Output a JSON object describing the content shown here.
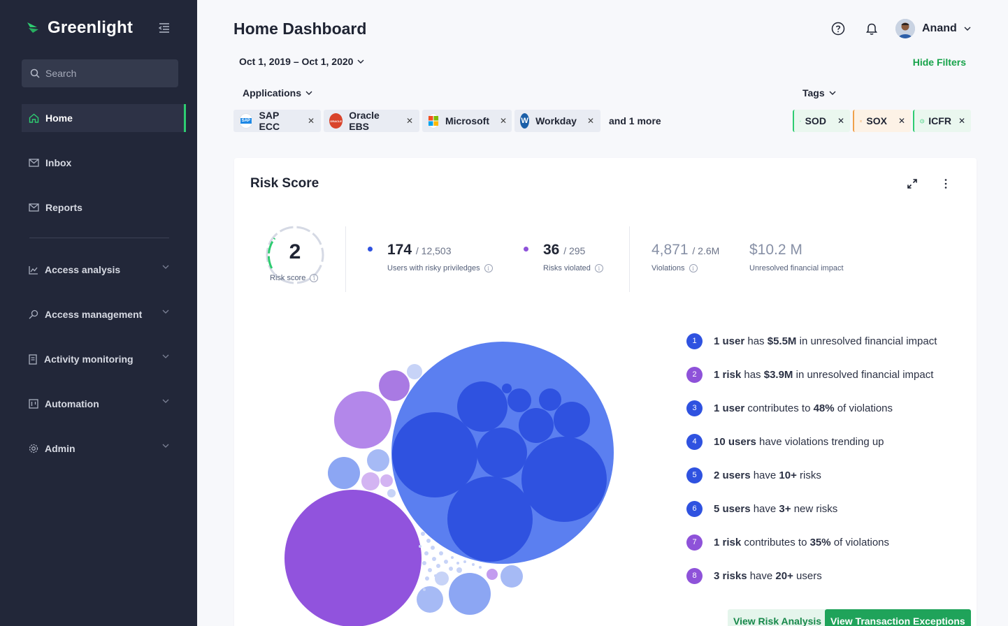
{
  "sidebar": {
    "brand": "Greenlight",
    "search_placeholder": "Search",
    "items": [
      {
        "label": "Home"
      },
      {
        "label": "Inbox"
      },
      {
        "label": "Reports"
      },
      {
        "label": "Access analysis"
      },
      {
        "label": "Access management"
      },
      {
        "label": "Activity monitoring"
      },
      {
        "label": "Automation"
      },
      {
        "label": "Admin"
      }
    ]
  },
  "header": {
    "title": "Home Dashboard",
    "user_name": "Anand",
    "date_range": "Oct 1, 2019 – Oct 1, 2020",
    "hide_filters": "Hide Filters"
  },
  "filters": {
    "applications_label": "Applications",
    "tags_label": "Tags",
    "applications": [
      {
        "name": "SAP ECC",
        "logo": "SAP",
        "color": "#1e88e5"
      },
      {
        "name": "Oracle EBS",
        "logo": "ORACLE",
        "color": "#d9442b"
      },
      {
        "name": "Microsoft",
        "logo": "",
        "color": "#ffffff"
      },
      {
        "name": "Workday",
        "logo": "W",
        "color": "#1b5fa8"
      }
    ],
    "more": "and 1 more",
    "tags": [
      {
        "name": "SOD",
        "color": "#2ecc71"
      },
      {
        "name": "SOX",
        "color": "#f0a04b"
      },
      {
        "name": "ICFR",
        "color": "#2ecc71"
      }
    ]
  },
  "risk_card": {
    "title": "Risk Score",
    "score": "2",
    "score_label": "Risk score",
    "stats": [
      {
        "value": "174",
        "total": "/ 12,503",
        "label": "Users with risky priviledges",
        "dot": "#2f52e0"
      },
      {
        "value": "36",
        "total": "/ 295",
        "label": "Risks violated",
        "dot": "#8e52d9"
      },
      {
        "value": "4,871",
        "total": "/ 2.6M",
        "label": "Violations"
      },
      {
        "value": "$10.2 M",
        "total": "",
        "label": "Unresolved financial impact"
      }
    ],
    "insights": [
      {
        "n": "1",
        "color": "#2f52e0",
        "pre": "",
        "b1": "1 user",
        "mid": " has ",
        "b2": "$5.5M",
        "post": " in unresolved financial impact"
      },
      {
        "n": "2",
        "color": "#8e52d9",
        "pre": "",
        "b1": "1 risk",
        "mid": " has ",
        "b2": "$3.9M",
        "post": " in unresolved financial impact"
      },
      {
        "n": "3",
        "color": "#2f52e0",
        "pre": "",
        "b1": "1 user",
        "mid": " contributes to ",
        "b2": "48%",
        "post": " of violations"
      },
      {
        "n": "4",
        "color": "#2f52e0",
        "pre": "",
        "b1": "10 users",
        "mid": " have violations trending up",
        "b2": "",
        "post": ""
      },
      {
        "n": "5",
        "color": "#2f52e0",
        "pre": "",
        "b1": "2 users",
        "mid": " have ",
        "b2": "10+",
        "post": " risks"
      },
      {
        "n": "6",
        "color": "#2f52e0",
        "pre": "",
        "b1": "5 users",
        "mid": " have ",
        "b2": "3+",
        "post": " new risks"
      },
      {
        "n": "7",
        "color": "#8e52d9",
        "pre": "",
        "b1": "1 risk",
        "mid": " contributes to ",
        "b2": "35%",
        "post": " of violations"
      },
      {
        "n": "8",
        "color": "#8e52d9",
        "pre": "",
        "b1": "3 risks",
        "mid": " have ",
        "b2": "20+",
        "post": " users"
      }
    ],
    "buttons": {
      "risk_analysis": "View Risk Analysis",
      "transaction_exceptions": "View Transaction Exceptions"
    }
  }
}
